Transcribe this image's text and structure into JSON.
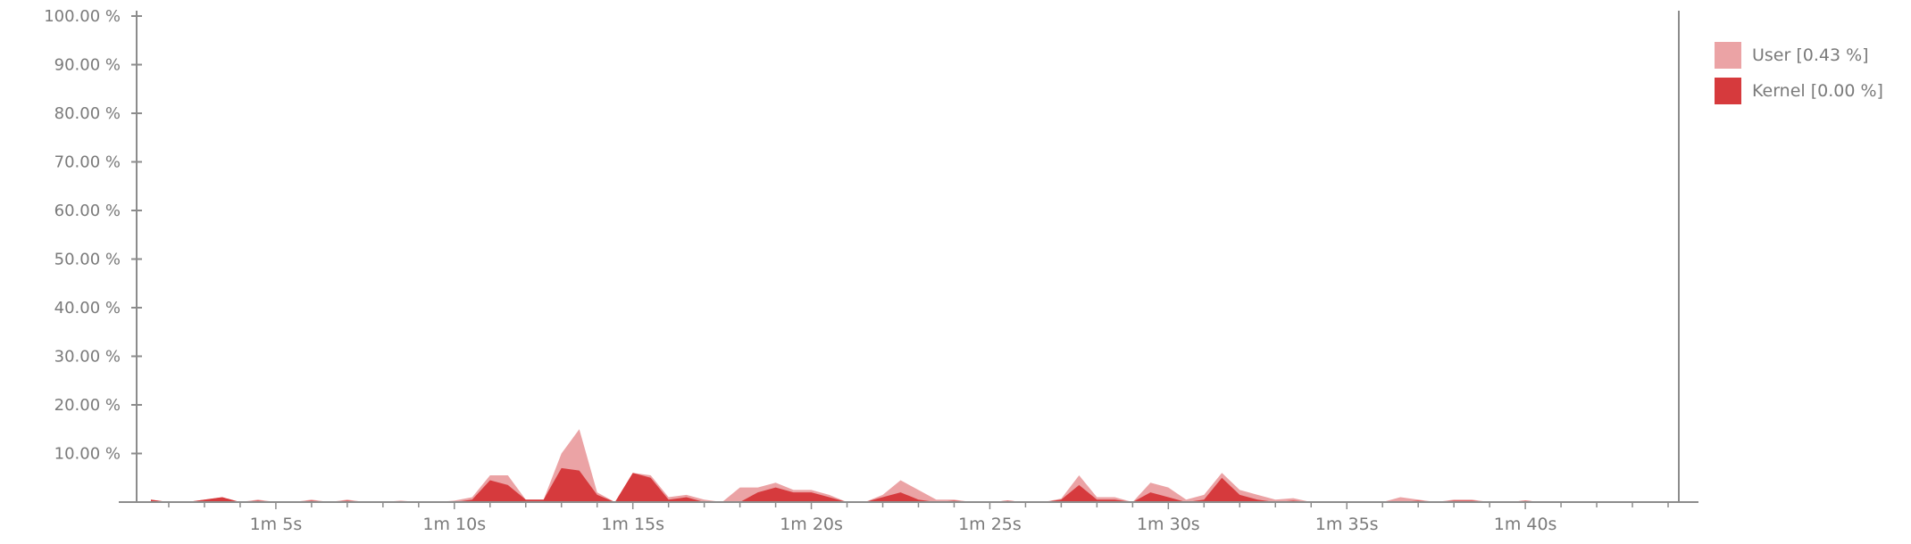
{
  "chart_data": {
    "type": "area",
    "stacked": true,
    "x_unit": "seconds",
    "xlim": [
      61.1,
      104.3
    ],
    "ylim": [
      0,
      100
    ],
    "y_ticks": [
      10,
      20,
      30,
      40,
      50,
      60,
      70,
      80,
      90,
      100
    ],
    "y_tick_labels": [
      "10.00 %",
      "20.00 %",
      "30.00 %",
      "40.00 %",
      "50.00 %",
      "60.00 %",
      "70.00 %",
      "80.00 %",
      "90.00 %",
      "100.00 %"
    ],
    "x_ticks": [
      65,
      70,
      75,
      80,
      85,
      90,
      95,
      100
    ],
    "x_tick_labels": [
      "1m 5s",
      "1m 10s",
      "1m 15s",
      "1m 20s",
      "1m 25s",
      "1m 30s",
      "1m 35s",
      "1m 40s"
    ],
    "grid": false,
    "legend_position": "top-right",
    "x": [
      61.5,
      62,
      62.5,
      63,
      63.5,
      64,
      64.5,
      65,
      65.5,
      66,
      66.5,
      67,
      67.5,
      68,
      68.5,
      69,
      69.5,
      70,
      70.5,
      71,
      71.5,
      72,
      72.5,
      73,
      73.5,
      74,
      74.5,
      75,
      75.5,
      76,
      76.5,
      77,
      77.5,
      78,
      78.5,
      79,
      79.5,
      80,
      80.5,
      81,
      81.5,
      82,
      82.5,
      83,
      83.5,
      84,
      84.5,
      85,
      85.5,
      86,
      86.5,
      87,
      87.5,
      88,
      88.5,
      89,
      89.5,
      90,
      90.5,
      91,
      91.5,
      92,
      92.5,
      93,
      93.5,
      94,
      94.5,
      95,
      95.5,
      96,
      96.5,
      97,
      97.5,
      98,
      98.5,
      99,
      99.5,
      100,
      100.5,
      101,
      101.5,
      102,
      102.5,
      103,
      103.5,
      104
    ],
    "series": [
      {
        "name": "Kernel [0.00 %]",
        "color": "#d63a3d",
        "values": [
          0.5,
          0,
          0,
          0.5,
          1,
          0,
          0.3,
          0,
          0,
          0.3,
          0,
          0.3,
          0,
          0,
          0,
          0,
          0,
          0,
          0.5,
          4.5,
          3.5,
          0.5,
          0.5,
          7,
          6.5,
          1.5,
          0,
          6,
          5,
          0.5,
          1,
          0,
          0,
          0,
          2,
          3,
          2,
          2,
          1,
          0,
          0,
          1,
          2,
          0.5,
          0,
          0.3,
          0,
          0,
          0.3,
          0,
          0,
          0.5,
          3.5,
          0.5,
          0.5,
          0,
          2,
          1,
          0,
          0.5,
          5,
          1.5,
          0.5,
          0,
          0.3,
          0,
          0,
          0,
          0,
          0,
          0,
          0.3,
          0,
          0.3,
          0.3,
          0,
          0,
          0.3,
          0,
          0,
          0,
          0,
          0,
          0,
          0,
          0
        ]
      },
      {
        "name": "User [0.43 %]",
        "color": "#eba3a5",
        "values": [
          0,
          0,
          0,
          0,
          0,
          0,
          0.2,
          0,
          0,
          0.2,
          0,
          0.2,
          0,
          0,
          0.3,
          0,
          0,
          0.3,
          0.5,
          1,
          2,
          0,
          0,
          3,
          8.5,
          0.5,
          0,
          0,
          0.5,
          0.5,
          0.5,
          0.5,
          0,
          3,
          1,
          1,
          0.5,
          0.5,
          0.5,
          0,
          0,
          0.5,
          2.5,
          2,
          0.5,
          0.2,
          0,
          0,
          0,
          0,
          0,
          0.2,
          2,
          0.5,
          0.5,
          0,
          2,
          2,
          0.5,
          1,
          1,
          1,
          1,
          0.5,
          0.5,
          0,
          0,
          0,
          0,
          0,
          1,
          0.2,
          0,
          0.2,
          0.2,
          0,
          0,
          0,
          0,
          0,
          0,
          0,
          0,
          0,
          0,
          0
        ]
      }
    ]
  }
}
